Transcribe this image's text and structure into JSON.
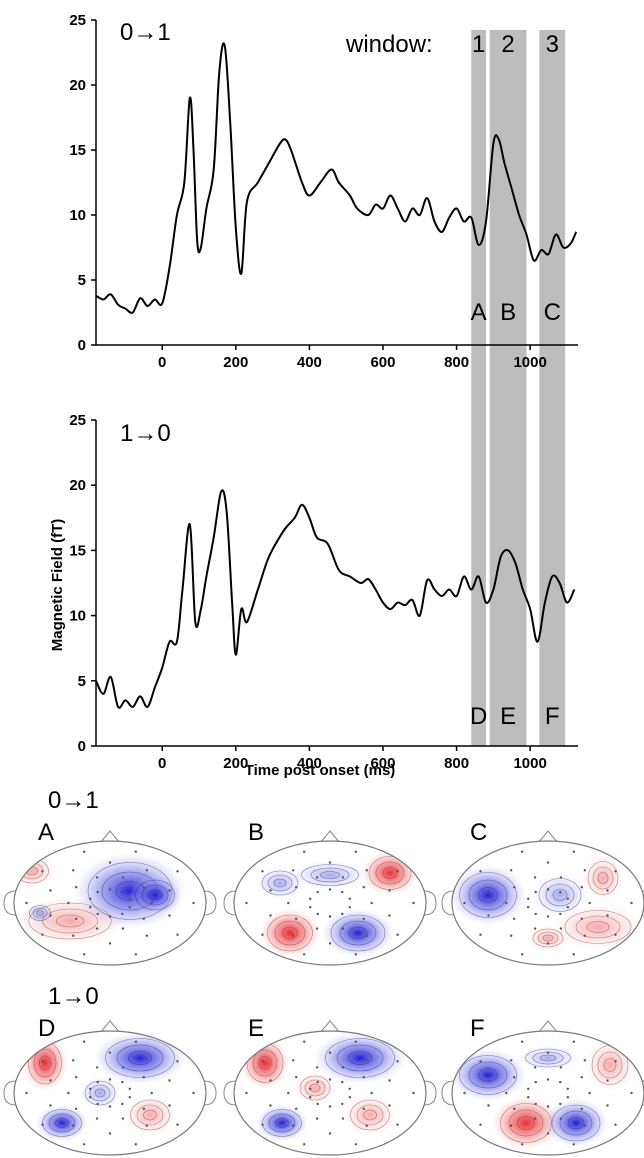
{
  "chart_data": [
    {
      "type": "line",
      "condition_label": "0→1",
      "ylim": [
        0,
        25
      ],
      "xlim": [
        -180,
        1130
      ],
      "y_ticks": [
        "0",
        "5",
        "10",
        "15",
        "20",
        "25"
      ],
      "x_ticks": [
        "0",
        "200",
        "400",
        "600",
        "800",
        "1000"
      ],
      "xlabel": "",
      "ylabel": "",
      "windows_label": "window:",
      "windows": [
        {
          "name": "1",
          "range": [
            840,
            880
          ]
        },
        {
          "name": "2",
          "range": [
            890,
            990
          ]
        },
        {
          "name": "3",
          "range": [
            1025,
            1095
          ]
        }
      ],
      "window_letters": [
        "A",
        "B",
        "C"
      ],
      "series": [
        {
          "x": [
            -180,
            -160,
            -140,
            -120,
            -100,
            -80,
            -60,
            -40,
            -20,
            0,
            20,
            40,
            60,
            75,
            85,
            95,
            105,
            120,
            140,
            155,
            170,
            185,
            200,
            215,
            230,
            260,
            290,
            320,
            335,
            350,
            380,
            400,
            430,
            460,
            480,
            510,
            530,
            560,
            580,
            600,
            620,
            640,
            660,
            680,
            700,
            720,
            740,
            760,
            780,
            800,
            820,
            840,
            860,
            880,
            900,
            915,
            930,
            950,
            970,
            990,
            1010,
            1030,
            1050,
            1070,
            1090,
            1110,
            1125
          ],
          "y": [
            3.8,
            3.5,
            3.9,
            3.1,
            2.8,
            2.5,
            3.6,
            3.0,
            3.5,
            3.2,
            6.0,
            10.0,
            12.5,
            19.0,
            15.0,
            8.0,
            7.5,
            10.5,
            13.5,
            21.0,
            23.0,
            17.0,
            9.0,
            5.5,
            11.0,
            12.5,
            14.0,
            15.5,
            15.8,
            15.0,
            12.5,
            11.5,
            12.5,
            13.5,
            12.5,
            11.5,
            10.5,
            10.0,
            10.8,
            10.5,
            11.5,
            10.5,
            9.5,
            10.5,
            10.0,
            11.3,
            9.5,
            8.7,
            9.8,
            10.5,
            9.5,
            9.8,
            7.7,
            9.5,
            15.5,
            15.8,
            14.0,
            12.0,
            10.0,
            8.5,
            6.5,
            7.3,
            7.0,
            8.5,
            7.5,
            7.8,
            8.7
          ]
        }
      ]
    },
    {
      "type": "line",
      "condition_label": "1→0",
      "ylim": [
        0,
        25
      ],
      "xlim": [
        -180,
        1130
      ],
      "y_ticks": [
        "0",
        "5",
        "10",
        "15",
        "20",
        "25"
      ],
      "x_ticks": [
        "0",
        "200",
        "400",
        "600",
        "800",
        "1000"
      ],
      "xlabel": "Time post onset (ms)",
      "ylabel": "Magnetic Field (fT)",
      "windows": [
        {
          "name": "1",
          "range": [
            840,
            880
          ]
        },
        {
          "name": "2",
          "range": [
            890,
            990
          ]
        },
        {
          "name": "3",
          "range": [
            1025,
            1095
          ]
        }
      ],
      "window_letters": [
        "D",
        "E",
        "F"
      ],
      "series": [
        {
          "x": [
            -180,
            -160,
            -140,
            -120,
            -100,
            -80,
            -60,
            -40,
            -20,
            0,
            20,
            40,
            55,
            75,
            90,
            105,
            120,
            140,
            160,
            175,
            190,
            200,
            215,
            230,
            260,
            290,
            330,
            360,
            380,
            400,
            420,
            450,
            480,
            510,
            540,
            560,
            580,
            600,
            620,
            640,
            660,
            680,
            700,
            720,
            740,
            760,
            780,
            800,
            820,
            840,
            860,
            880,
            900,
            920,
            940,
            960,
            980,
            1000,
            1020,
            1040,
            1060,
            1080,
            1100,
            1120
          ],
          "y": [
            5.0,
            4.0,
            5.3,
            3.0,
            3.5,
            3.0,
            3.8,
            3.0,
            4.5,
            6.0,
            8.0,
            8.0,
            12.0,
            17.0,
            9.5,
            10.5,
            13.0,
            16.0,
            19.5,
            18.0,
            11.0,
            7.0,
            10.5,
            9.5,
            12.0,
            14.5,
            16.5,
            17.5,
            18.5,
            17.5,
            16.0,
            15.5,
            13.5,
            13.0,
            12.5,
            12.8,
            12.0,
            11.0,
            10.5,
            11.0,
            10.8,
            11.2,
            10.0,
            12.7,
            12.0,
            11.5,
            12.0,
            11.5,
            13.0,
            12.0,
            13.0,
            11.0,
            12.0,
            14.5,
            15.0,
            14.0,
            12.0,
            10.5,
            8.0,
            11.0,
            13.0,
            12.5,
            11.0,
            12.0
          ]
        }
      ]
    },
    {
      "type": "heatmap",
      "group_label": "0→1",
      "maps": [
        {
          "label": "A"
        },
        {
          "label": "B"
        },
        {
          "label": "C"
        }
      ]
    },
    {
      "type": "heatmap",
      "group_label": "1→0",
      "maps": [
        {
          "label": "D"
        },
        {
          "label": "E"
        },
        {
          "label": "F"
        }
      ]
    }
  ],
  "colors": {
    "trace": "#000000",
    "window_band": "#bdbdbd",
    "positive": "#e03030",
    "negative": "#1a1ad8",
    "sensor_dot": "#555555"
  }
}
